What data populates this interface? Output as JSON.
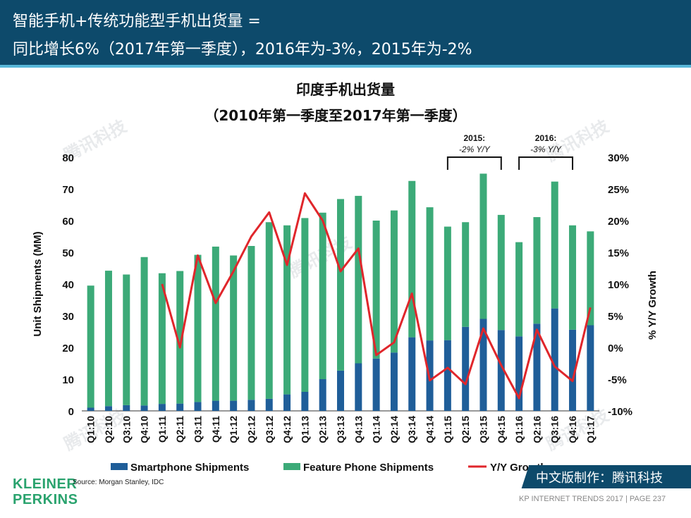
{
  "header": {
    "line1": "智能手机+传统功能型手机出货量 =",
    "line2": "同比增长6%（2017年第一季度），2016年为-3%，2015年为-2%"
  },
  "chart_data": {
    "type": "bar",
    "title": "印度手机出货量",
    "subtitle": "（2010年第一季度至2017年第一季度）",
    "ylabel": "Unit Shipments (MM)",
    "y2label": "% Y/Y Growth",
    "ylim": [
      0,
      80
    ],
    "y2lim": [
      -10,
      30
    ],
    "y_ticks": [
      "0",
      "10",
      "20",
      "30",
      "40",
      "50",
      "60",
      "70",
      "80"
    ],
    "y2_ticks": [
      "-10%",
      "-5%",
      "0%",
      "5%",
      "10%",
      "15%",
      "20%",
      "25%",
      "30%"
    ],
    "categories": [
      "Q1:10",
      "Q2:10",
      "Q3:10",
      "Q4:10",
      "Q1:11",
      "Q2:11",
      "Q3:11",
      "Q4:11",
      "Q1:12",
      "Q2:12",
      "Q3:12",
      "Q4:12",
      "Q1:13",
      "Q2:13",
      "Q3:13",
      "Q4:13",
      "Q1:14",
      "Q2:14",
      "Q3:14",
      "Q4:14",
      "Q1:15",
      "Q2:15",
      "Q3:15",
      "Q4:15",
      "Q1:16",
      "Q2:16",
      "Q3:16",
      "Q4:16",
      "Q1:17"
    ],
    "series": [
      {
        "name": "Smartphone Shipments",
        "color": "#1f5e99",
        "values": [
          1,
          1.5,
          1.8,
          1.7,
          2.2,
          2.3,
          2.8,
          3.2,
          3.2,
          3.5,
          3.8,
          5.2,
          6,
          10,
          12.7,
          15,
          16.5,
          18.4,
          23.2,
          22.2,
          22.3,
          26.5,
          29,
          25.5,
          23.5,
          27.5,
          32.3,
          25.6,
          27
        ]
      },
      {
        "name": "Feature Phone Shipments",
        "color": "#3caa78",
        "values": [
          38.5,
          42.7,
          41.2,
          46.8,
          41.2,
          41.8,
          46.4,
          48.6,
          45.8,
          48.5,
          55.7,
          53.3,
          54.8,
          52.5,
          54.1,
          52.8,
          43.5,
          44.8,
          49.3,
          42,
          35.8,
          33,
          45.8,
          36.3,
          29.7,
          33.6,
          40,
          32.9,
          29.6
        ]
      },
      {
        "name": "Y/Y Growth",
        "color": "#e0262b",
        "axis": "right",
        "values": [
          null,
          null,
          null,
          null,
          10,
          0,
          14.5,
          7,
          12,
          17.5,
          21.3,
          13,
          24.3,
          20,
          12,
          15.6,
          -1.2,
          0.8,
          8.5,
          -5.2,
          -3.2,
          -5.8,
          3,
          -2.8,
          -8,
          2.8,
          -3,
          -5.3,
          6.3
        ]
      }
    ],
    "annotations": [
      {
        "label": "2015:",
        "sub": "-2% Y/Y",
        "from": "Q1:15",
        "to": "Q4:15"
      },
      {
        "label": "2016:",
        "sub": "-3% Y/Y",
        "from": "Q1:16",
        "to": "Q4:16"
      }
    ],
    "legend_position": "bottom",
    "grid": false
  },
  "branding": {
    "logo_line1": "KLEINER",
    "logo_line2": "PERKINS",
    "source": "Source: Morgan Stanley, IDC",
    "badge": "中文版制作：腾讯科技",
    "footer": "KP INTERNET TRENDS 2017   |   PAGE 237",
    "watermark": "腾讯科技",
    "brand_color": "#0d4a6b",
    "accent_color": "#57b7d9"
  }
}
